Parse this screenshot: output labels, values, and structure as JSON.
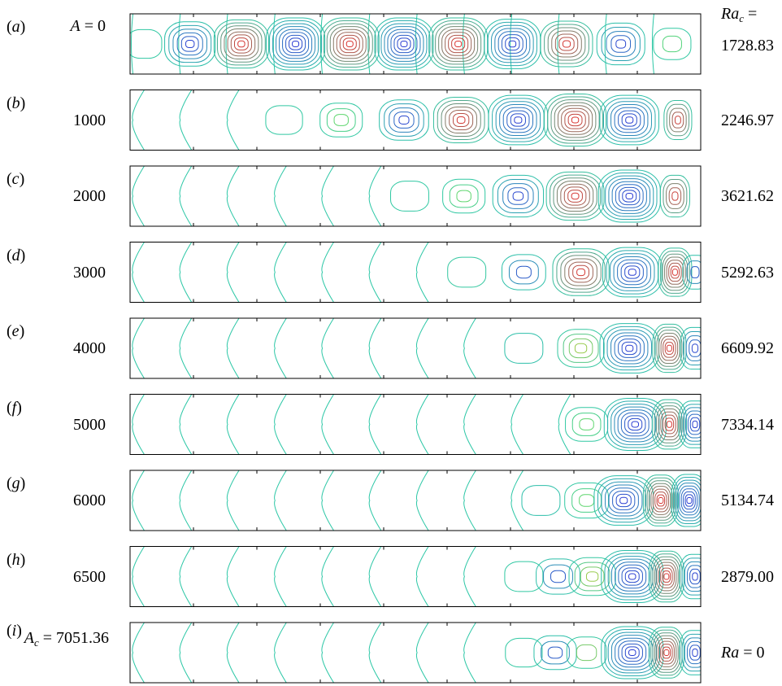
{
  "figure": {
    "ra_header": {
      "symbol": "Ra",
      "sub": "c",
      "suffix": " ="
    },
    "a_prefix": {
      "symbol": "A",
      "suffix": " = "
    },
    "panels": [
      {
        "label": "a",
        "A": "0",
        "Ra": "1728.83",
        "cells": [
          {
            "x": 0.025,
            "h": 0.1,
            "c": "g"
          },
          {
            "x": 0.105,
            "h": 0.7,
            "c": "b"
          },
          {
            "x": 0.195,
            "h": 0.85,
            "c": "r"
          },
          {
            "x": 0.29,
            "h": 1.0,
            "c": "b"
          },
          {
            "x": 0.385,
            "h": 1.0,
            "c": "r"
          },
          {
            "x": 0.48,
            "h": 1.0,
            "c": "b"
          },
          {
            "x": 0.575,
            "h": 1.0,
            "c": "r"
          },
          {
            "x": 0.67,
            "h": 0.9,
            "c": "b"
          },
          {
            "x": 0.765,
            "h": 0.75,
            "c": "r"
          },
          {
            "x": 0.86,
            "h": 0.6,
            "c": "b"
          },
          {
            "x": 0.95,
            "h": 0.2,
            "c": "g"
          }
        ]
      },
      {
        "label": "b",
        "A": "1000",
        "Ra": "2246.97",
        "cells": [
          {
            "x": 0.27,
            "h": 0.1,
            "c": "g"
          },
          {
            "x": 0.37,
            "h": 0.3,
            "c": "g"
          },
          {
            "x": 0.48,
            "h": 0.55,
            "c": "b"
          },
          {
            "x": 0.58,
            "h": 0.75,
            "c": "r"
          },
          {
            "x": 0.68,
            "h": 0.9,
            "c": "b"
          },
          {
            "x": 0.78,
            "h": 1.0,
            "c": "r"
          },
          {
            "x": 0.875,
            "h": 0.9,
            "c": "b"
          },
          {
            "x": 0.96,
            "h": 0.5,
            "c": "r"
          }
        ]
      },
      {
        "label": "c",
        "A": "2000",
        "Ra": "3621.62",
        "cells": [
          {
            "x": 0.49,
            "h": 0.15,
            "c": "g"
          },
          {
            "x": 0.585,
            "h": 0.3,
            "c": "g"
          },
          {
            "x": 0.68,
            "h": 0.6,
            "c": "b"
          },
          {
            "x": 0.78,
            "h": 0.85,
            "c": "r"
          },
          {
            "x": 0.875,
            "h": 1.0,
            "c": "b"
          },
          {
            "x": 0.955,
            "h": 0.6,
            "c": "r"
          }
        ]
      },
      {
        "label": "d",
        "A": "3000",
        "Ra": "5292.63",
        "cells": [
          {
            "x": 0.59,
            "h": 0.15,
            "c": "y"
          },
          {
            "x": 0.69,
            "h": 0.35,
            "c": "b"
          },
          {
            "x": 0.79,
            "h": 0.8,
            "c": "r"
          },
          {
            "x": 0.88,
            "h": 0.9,
            "c": "b"
          },
          {
            "x": 0.955,
            "h": 0.85,
            "c": "r"
          },
          {
            "x": 0.99,
            "h": 0.3,
            "c": "b"
          }
        ]
      },
      {
        "label": "e",
        "A": "4000",
        "Ra": "6609.92",
        "cells": [
          {
            "x": 0.69,
            "h": 0.15,
            "c": "b"
          },
          {
            "x": 0.79,
            "h": 0.45,
            "c": "y"
          },
          {
            "x": 0.875,
            "h": 0.9,
            "c": "b"
          },
          {
            "x": 0.945,
            "h": 0.85,
            "c": "r"
          },
          {
            "x": 0.99,
            "h": 0.6,
            "c": "b"
          }
        ]
      },
      {
        "label": "f",
        "A": "5000",
        "Ra": "7334.14",
        "cells": [
          {
            "x": 0.8,
            "h": 0.3,
            "c": "g"
          },
          {
            "x": 0.885,
            "h": 1.0,
            "c": "b"
          },
          {
            "x": 0.945,
            "h": 0.9,
            "c": "r"
          },
          {
            "x": 0.99,
            "h": 0.8,
            "c": "b"
          }
        ]
      },
      {
        "label": "g",
        "A": "6000",
        "Ra": "5134.74",
        "cells": [
          {
            "x": 0.72,
            "h": 0.15,
            "c": "b"
          },
          {
            "x": 0.8,
            "h": 0.35,
            "c": "g"
          },
          {
            "x": 0.865,
            "h": 0.9,
            "c": "b"
          },
          {
            "x": 0.93,
            "h": 0.95,
            "c": "r"
          },
          {
            "x": 0.98,
            "h": 1.0,
            "c": "b"
          }
        ]
      },
      {
        "label": "h",
        "A": "6500",
        "Ra": "2879.00",
        "cells": [
          {
            "x": 0.69,
            "h": 0.15,
            "c": "g"
          },
          {
            "x": 0.75,
            "h": 0.35,
            "c": "b"
          },
          {
            "x": 0.81,
            "h": 0.45,
            "c": "y"
          },
          {
            "x": 0.88,
            "h": 1.0,
            "c": "b"
          },
          {
            "x": 0.94,
            "h": 0.95,
            "c": "r"
          },
          {
            "x": 0.99,
            "h": 0.7,
            "c": "b"
          }
        ]
      },
      {
        "label": "i",
        "A": "7051.36",
        "Ra": "0",
        "cells": [
          {
            "x": 0.69,
            "h": 0.1,
            "c": "g"
          },
          {
            "x": 0.745,
            "h": 0.3,
            "c": "b"
          },
          {
            "x": 0.8,
            "h": 0.2,
            "c": "y"
          },
          {
            "x": 0.88,
            "h": 1.0,
            "c": "b"
          },
          {
            "x": 0.94,
            "h": 0.95,
            "c": "r"
          },
          {
            "x": 0.99,
            "h": 0.7,
            "c": "b"
          }
        ]
      }
    ],
    "colors": {
      "r": "#ee2222",
      "b": "#2a2ad8",
      "g": "#77dd55",
      "y": "#bbcc33",
      "line": "#2cc7a6",
      "frame": "#000000"
    }
  }
}
